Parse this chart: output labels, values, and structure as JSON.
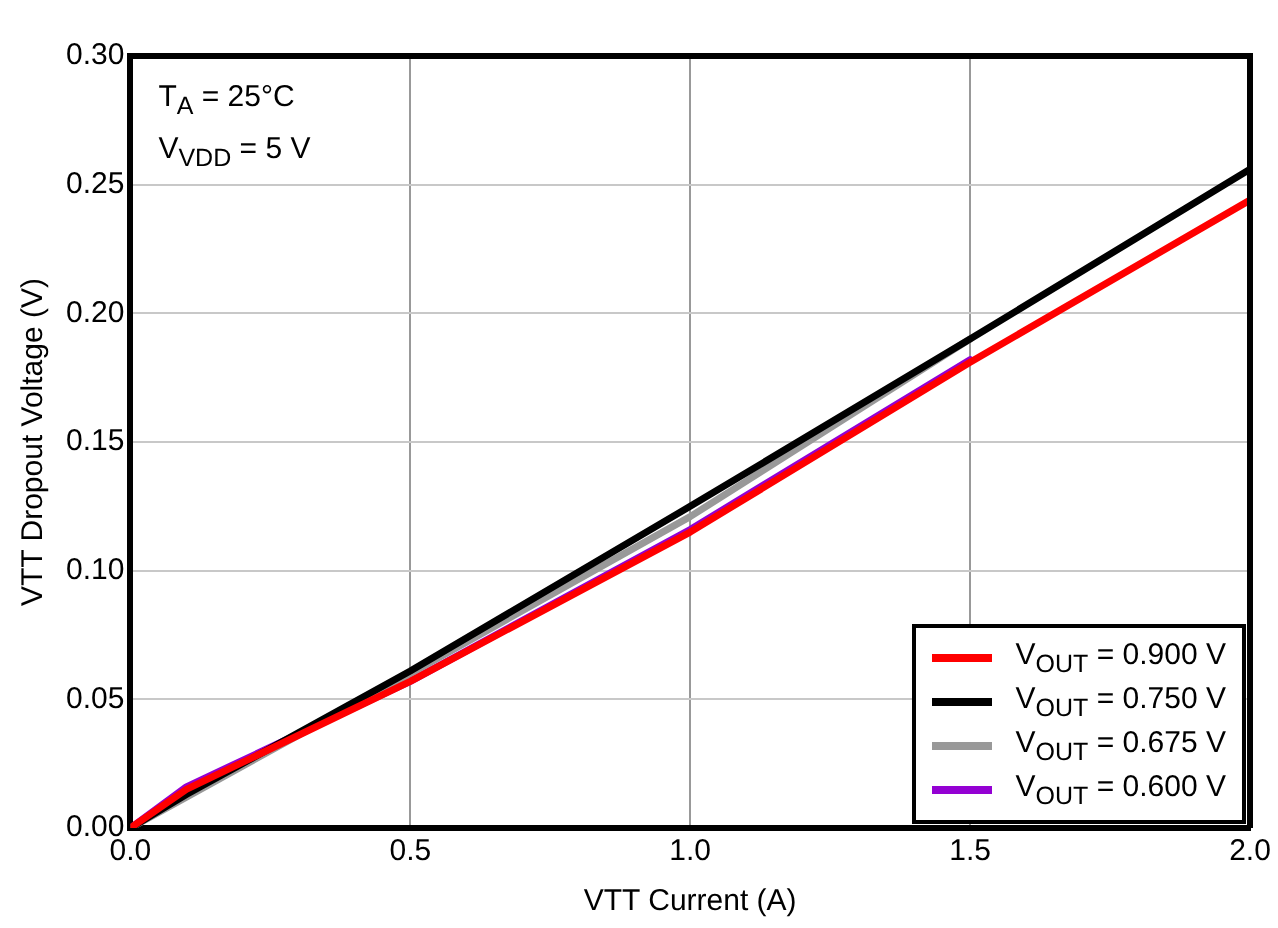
{
  "chart_data": {
    "type": "line",
    "xlabel": "VTT Current (A)",
    "ylabel": "VTT Dropout Voltage (V)",
    "xlim": [
      0,
      2
    ],
    "xticks": [
      {
        "value": 0,
        "label": "0.0"
      },
      {
        "value": 0.5,
        "label": "0.5"
      },
      {
        "value": 1,
        "label": "1.0"
      },
      {
        "value": 1.5,
        "label": "1.5"
      },
      {
        "value": 2,
        "label": "2.0"
      }
    ],
    "ylim": [
      0,
      0.3
    ],
    "yticks": [
      {
        "value": 0,
        "label": "0.00"
      },
      {
        "value": 0.05,
        "label": "0.05"
      },
      {
        "value": 0.1,
        "label": "0.10"
      },
      {
        "value": 0.15,
        "label": "0.15"
      },
      {
        "value": 0.2,
        "label": "0.20"
      },
      {
        "value": 0.25,
        "label": "0.25"
      },
      {
        "value": 0.3,
        "label": "0.30"
      }
    ],
    "grid": true,
    "legend": "bottom right",
    "marker": "none",
    "line_style": "solid",
    "annotations": [
      "T$_{A}$ = 25°C",
      "V$_{VDD}$ = 5 V"
    ],
    "series": [
      {
        "name": "V$_{OUT}$ = 0.900 V",
        "color": "#ff0000",
        "x": [
          0,
          0.1,
          0.5,
          1.0,
          1.5,
          2.0
        ],
        "values": [
          0,
          0.015,
          0.057,
          0.115,
          0.181,
          0.244
        ]
      },
      {
        "name": "V$_{OUT}$ = 0.750 V",
        "color": "#000000",
        "x": [
          0,
          0.1,
          0.5,
          1.0,
          1.5,
          2.0
        ],
        "values": [
          0,
          0.013,
          0.061,
          0.125,
          0.19,
          0.256
        ]
      },
      {
        "name": "V$_{OUT}$ = 0.675 V",
        "color": "#999999",
        "x": [
          0,
          0.1,
          0.5,
          1.0,
          1.5
        ],
        "values": [
          0,
          0.012,
          0.06,
          0.121,
          0.19
        ]
      },
      {
        "name": "V$_{OUT}$ = 0.600 V",
        "color": "#9400d3",
        "x": [
          0,
          0.1,
          0.5,
          1.0,
          1.5
        ],
        "values": [
          0,
          0.016,
          0.057,
          0.116,
          0.182
        ]
      }
    ]
  }
}
